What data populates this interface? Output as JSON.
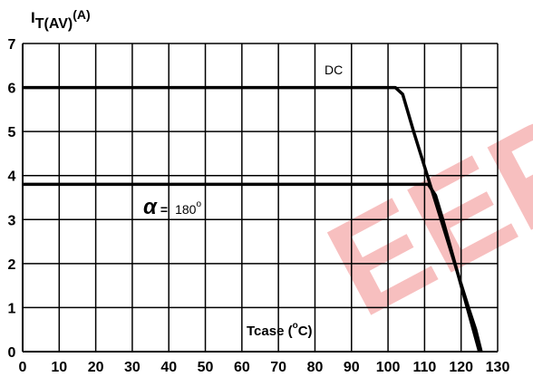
{
  "chart_data": {
    "type": "line",
    "ylabel_main": "I",
    "ylabel_sub": "T(AV)",
    "ylabel_unit": "(A)",
    "xlabel_main": "Tcase (",
    "xlabel_deg": "o",
    "xlabel_unit": "C)",
    "xlim": [
      0,
      130
    ],
    "ylim": [
      0,
      7
    ],
    "x_ticks": [
      "0",
      "10",
      "20",
      "30",
      "40",
      "50",
      "60",
      "70",
      "80",
      "90",
      "100",
      "110",
      "120",
      "130"
    ],
    "y_ticks": [
      "0",
      "1",
      "2",
      "3",
      "4",
      "5",
      "6",
      "7"
    ],
    "grid": true,
    "series": [
      {
        "name": "DC",
        "points": [
          [
            0,
            6.0
          ],
          [
            102,
            6.0
          ],
          [
            104,
            5.85
          ],
          [
            107,
            5.0
          ],
          [
            110,
            4.2
          ],
          [
            113,
            3.4
          ],
          [
            116,
            2.6
          ],
          [
            119,
            1.8
          ],
          [
            122,
            1.0
          ],
          [
            124,
            0.5
          ],
          [
            125.5,
            0.0
          ]
        ]
      },
      {
        "name": "α = 180",
        "name_symbol": "α",
        "name_eq": "=",
        "name_value": "180",
        "name_deg": "o",
        "points": [
          [
            0,
            3.8
          ],
          [
            111,
            3.8
          ],
          [
            113,
            3.55
          ],
          [
            115,
            3.0
          ],
          [
            117,
            2.4
          ],
          [
            119,
            1.8
          ],
          [
            121,
            1.2
          ],
          [
            123,
            0.6
          ],
          [
            125,
            0.0
          ]
        ]
      }
    ],
    "watermark": "EEP"
  }
}
